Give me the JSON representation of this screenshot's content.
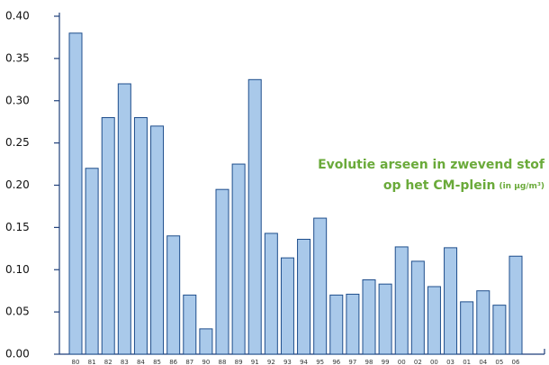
{
  "chart_data": {
    "type": "bar",
    "title": "Evolutie arseen in zwevend stof",
    "subtitle": "op het CM-plein",
    "unit_note": "(in µg/m³)",
    "categories": [
      "80",
      "81",
      "82",
      "83",
      "84",
      "85",
      "86",
      "87",
      "90",
      "88",
      "89",
      "91",
      "92",
      "93",
      "94",
      "95",
      "96",
      "97",
      "98",
      "99",
      "00",
      "02",
      "00",
      "03",
      "01",
      "04",
      "05",
      "06"
    ],
    "values": [
      0.38,
      0.22,
      0.28,
      0.32,
      0.28,
      0.27,
      0.14,
      0.07,
      0.03,
      0.195,
      0.225,
      0.325,
      0.143,
      0.114,
      0.136,
      0.161,
      0.07,
      0.071,
      0.088,
      0.083,
      0.127,
      0.11,
      0.08,
      0.126,
      0.062,
      0.075,
      0.058,
      0.116
    ],
    "color": "#a9c9ea",
    "ylim": [
      0,
      0.4
    ],
    "yticks": [
      {
        "value": 0,
        "label": "0.00"
      },
      {
        "value": 0.05,
        "label": "0.05"
      },
      {
        "value": 0.1,
        "label": "0.10"
      },
      {
        "value": 0.15,
        "label": "0.15"
      },
      {
        "value": 0.2,
        "label": "0.20"
      },
      {
        "value": 0.25,
        "label": "0.25"
      },
      {
        "value": 0.3,
        "label": "0.30"
      },
      {
        "value": 0.35,
        "label": "0.35"
      },
      {
        "value": 0.4,
        "label": "0.40"
      }
    ]
  }
}
